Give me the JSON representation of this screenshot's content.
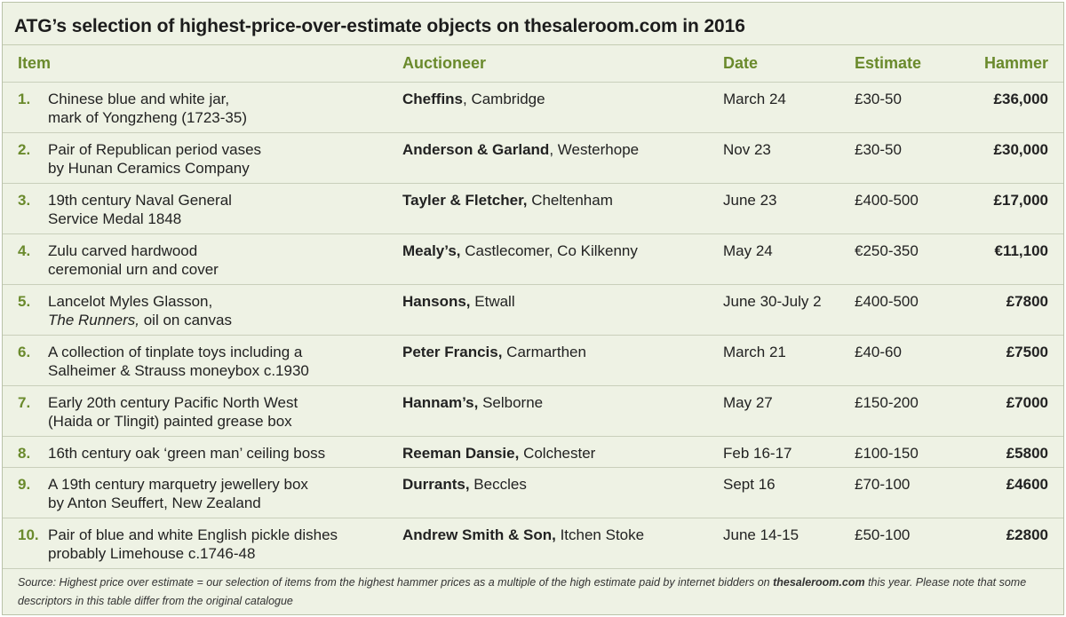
{
  "title": "ATG’s selection of highest-price-over-estimate objects on thesaleroom.com in 2016",
  "headers": {
    "item": "Item",
    "auctioneer": "Auctioneer",
    "date": "Date",
    "estimate": "Estimate",
    "hammer": "Hammer"
  },
  "rows": [
    {
      "num": "1.",
      "line1": "Chinese blue and white jar,",
      "line2a": "mark of Yongzheng (1723-35)",
      "line2b": "",
      "auct_bold": "Cheffins",
      "auct_rest": ", Cambridge",
      "date": "March 24",
      "estimate": "£30-50",
      "hammer": "£36,000"
    },
    {
      "num": "2.",
      "line1": "Pair of Republican period vases",
      "line2a": "by Hunan Ceramics Company",
      "line2b": "",
      "auct_bold": "Anderson & Garland",
      "auct_rest": ", Westerhope",
      "date": "Nov 23",
      "estimate": "£30-50",
      "hammer": "£30,000"
    },
    {
      "num": "3.",
      "line1": "19th century Naval General",
      "line2a": "Service Medal 1848",
      "line2b": "",
      "auct_bold": "Tayler & Fletcher,",
      "auct_rest": " Cheltenham",
      "date": "June 23",
      "estimate": "£400-500",
      "hammer": "£17,000"
    },
    {
      "num": "4.",
      "line1": "Zulu carved hardwood",
      "line2a": "ceremonial urn and cover",
      "line2b": "",
      "auct_bold": "Mealy’s,",
      "auct_rest": " Castlecomer, Co Kilkenny",
      "date": "May 24",
      "estimate": "€250-350",
      "hammer": "€11,100"
    },
    {
      "num": "5.",
      "line1": "Lancelot Myles Glasson,",
      "line2a": "The Runners,",
      "line2b": " oil on canvas",
      "auct_bold": "Hansons,",
      "auct_rest": " Etwall",
      "date": "June 30-July 2",
      "estimate": "£400-500",
      "hammer": "£7800"
    },
    {
      "num": "6.",
      "line1": "A collection of tinplate toys including a",
      "line2a": "Salheimer & Strauss moneybox c.1930",
      "line2b": "",
      "auct_bold": "Peter Francis,",
      "auct_rest": " Carmarthen",
      "date": "March 21",
      "estimate": "£40-60",
      "hammer": "£7500"
    },
    {
      "num": "7.",
      "line1": "Early 20th century Pacific North West",
      "line2a": "(Haida or Tlingit) painted grease box",
      "line2b": "",
      "auct_bold": "Hannam’s,",
      "auct_rest": " Selborne",
      "date": "May 27",
      "estimate": "£150-200",
      "hammer": "£7000"
    },
    {
      "num": "8.",
      "line1": "16th century oak ‘green man’ ceiling boss",
      "line2a": "",
      "line2b": "",
      "auct_bold": "Reeman Dansie,",
      "auct_rest": " Colchester",
      "date": "Feb 16-17",
      "estimate": "£100-150",
      "hammer": "£5800"
    },
    {
      "num": "9.",
      "line1": "A 19th century marquetry jewellery box",
      "line2a": "by Anton Seuffert, New Zealand",
      "line2b": "",
      "auct_bold": "Durrants,",
      "auct_rest": " Beccles",
      "date": "Sept 16",
      "estimate": "£70-100",
      "hammer": "£4600"
    },
    {
      "num": "10.",
      "line1": "Pair of blue and white English pickle dishes",
      "line2a": "probably Limehouse c.1746-48",
      "line2b": "",
      "auct_bold": "Andrew Smith & Son,",
      "auct_rest": " Itchen Stoke",
      "date": "June 14-15",
      "estimate": "£50-100",
      "hammer": "£2800"
    }
  ],
  "source": {
    "part1": "Source: Highest price over estimate = our selection of items from the highest hammer prices as a multiple of the high estimate paid by internet bidders on ",
    "site": "thesaleroom.com",
    "part2": " this year. Please note that some descriptors in this table differ from the original catalogue"
  }
}
